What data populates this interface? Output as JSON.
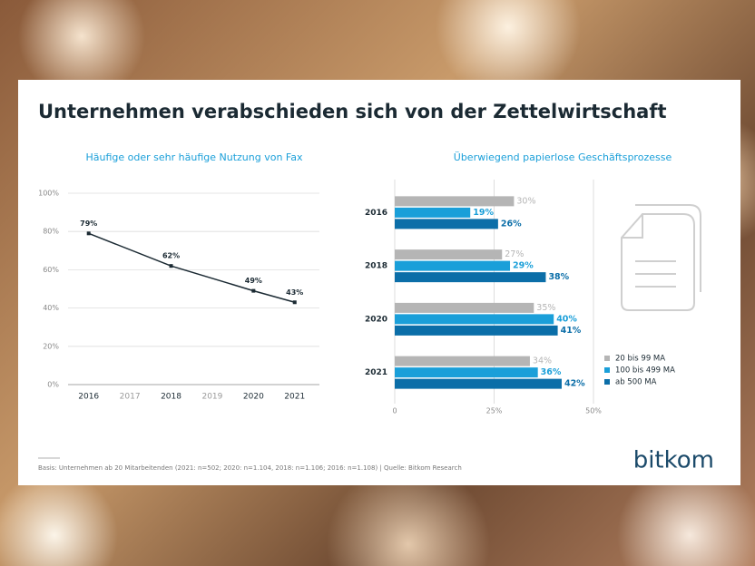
{
  "title": "Unternehmen verabschieden sich von der Zettelwirtschaft",
  "footnote": "Basis: Unternehmen ab 20 Mitarbeitenden (2021: n=502; 2020: n=1.104, 2018: n=1.106; 2016: n=1.108) | Quelle: Bitkom Research",
  "logo": "bitkom",
  "chart_data": [
    {
      "type": "line",
      "title": "Häufige oder sehr häufige Nutzung von Fax",
      "x": [
        2016,
        2018,
        2020,
        2021
      ],
      "values": [
        79,
        62,
        49,
        43
      ],
      "value_labels": [
        "79%",
        "62%",
        "49%",
        "43%"
      ],
      "color": "#1b2a33",
      "xlim": [
        2015.5,
        2021.6
      ],
      "xticks": [
        2016,
        2017,
        2018,
        2019,
        2020,
        2021
      ],
      "ylim": [
        0,
        100
      ],
      "yticks": [
        {
          "value": 0,
          "label": "0%"
        },
        {
          "value": 20,
          "label": "20%"
        },
        {
          "value": 40,
          "label": "40%"
        },
        {
          "value": 60,
          "label": "60%"
        },
        {
          "value": 80,
          "label": "80%"
        },
        {
          "value": 100,
          "label": "100%"
        }
      ],
      "grid": true
    },
    {
      "type": "bar",
      "orientation": "horizontal",
      "title": "Überwiegend papierlose Geschäftsprozesse",
      "categories": [
        "2016",
        "2018",
        "2020",
        "2021"
      ],
      "series": [
        {
          "name": "20 bis 99 MA",
          "color": "#b5b5b5",
          "values": [
            30,
            27,
            35,
            34
          ],
          "value_labels": [
            "30%",
            "27%",
            "35%",
            "34%"
          ]
        },
        {
          "name": "100 bis 499 MA",
          "color": "#1a9fd9",
          "values": [
            19,
            29,
            40,
            36
          ],
          "value_labels": [
            "19%",
            "29%",
            "40%",
            "36%"
          ]
        },
        {
          "name": "ab 500 MA",
          "color": "#0b6ea8",
          "values": [
            26,
            38,
            41,
            42
          ],
          "value_labels": [
            "26%",
            "38%",
            "41%",
            "42%"
          ]
        }
      ],
      "xlim": [
        0,
        50
      ],
      "xticks": [
        0,
        {
          "value": 25,
          "label": "25%"
        },
        {
          "value": 50,
          "label": "50%"
        }
      ],
      "grid": true,
      "legend": "bottom-right"
    }
  ]
}
